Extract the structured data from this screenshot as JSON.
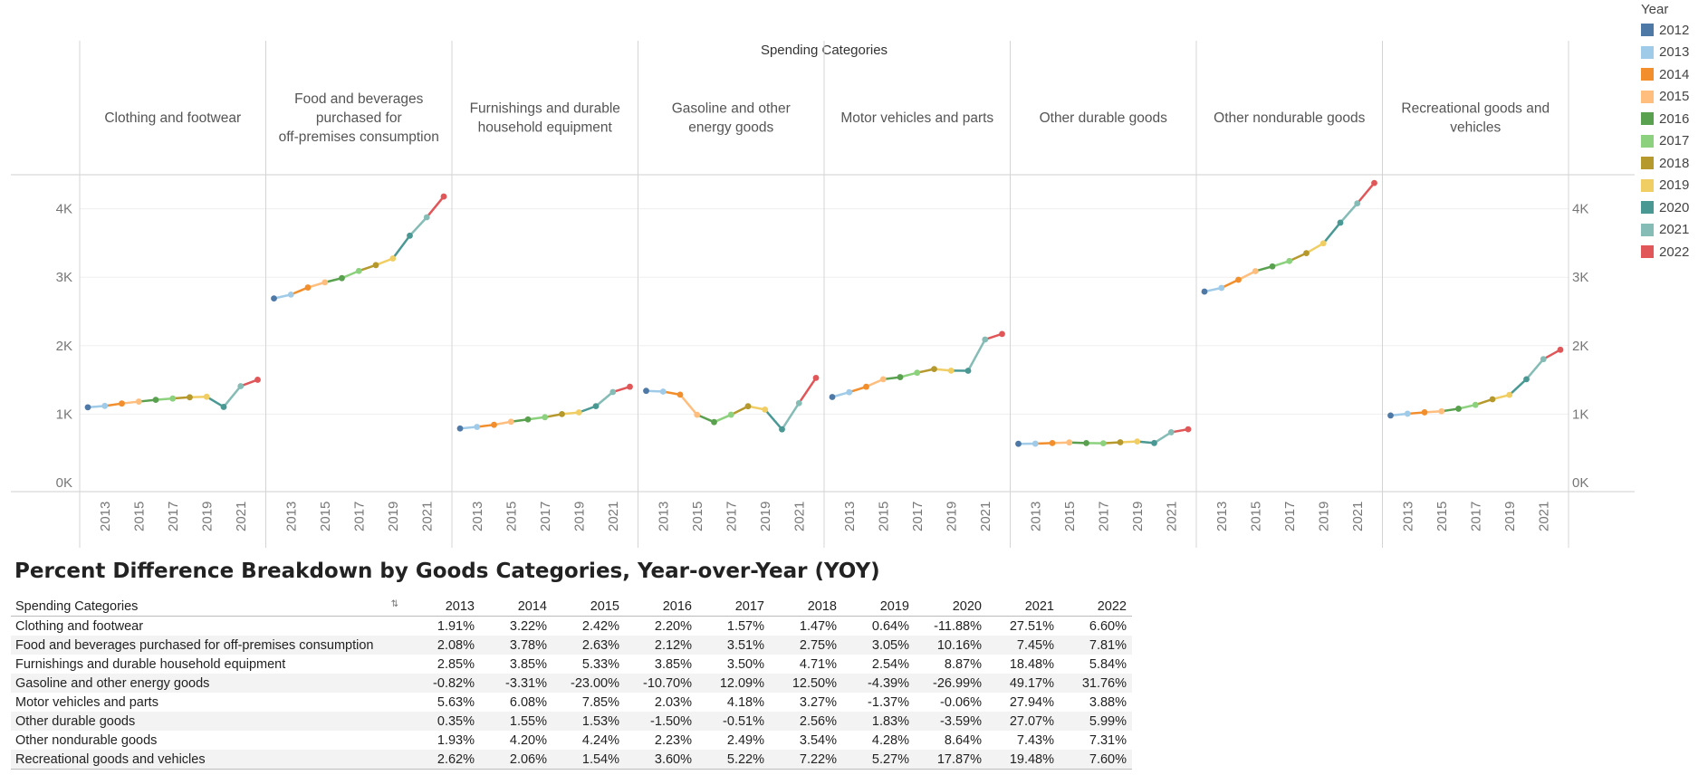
{
  "chart_data": {
    "type": "line",
    "title": "Spending Categories",
    "x": [
      2012,
      2013,
      2014,
      2015,
      2016,
      2017,
      2018,
      2019,
      2020,
      2021,
      2022
    ],
    "x_tick_labels": [
      "2013",
      "2015",
      "2017",
      "2019",
      "2021"
    ],
    "ylim": [
      0,
      4700
    ],
    "y_tick_labels": [
      "0K",
      "1K",
      "2K",
      "3K",
      "4K"
    ],
    "legend_title": "Year",
    "legend_placement": "right",
    "legend": [
      {
        "label": "2012",
        "color": "#4e79a7"
      },
      {
        "label": "2013",
        "color": "#a0cbe8"
      },
      {
        "label": "2014",
        "color": "#f28e2b"
      },
      {
        "label": "2015",
        "color": "#ffbe7d"
      },
      {
        "label": "2016",
        "color": "#59a14f"
      },
      {
        "label": "2017",
        "color": "#8cd17d"
      },
      {
        "label": "2018",
        "color": "#b6992d"
      },
      {
        "label": "2019",
        "color": "#f1ce63"
      },
      {
        "label": "2020",
        "color": "#499894"
      },
      {
        "label": "2021",
        "color": "#86bcb6"
      },
      {
        "label": "2022",
        "color": "#e15759"
      }
    ],
    "panels": [
      {
        "name": "Clothing and footwear",
        "values": [
          1100,
          1120,
          1155,
          1183,
          1209,
          1228,
          1246,
          1254,
          1105,
          1409,
          1502
        ]
      },
      {
        "name": "Food and beverages purchased for off-premises consumption",
        "values": [
          2690,
          2746,
          2850,
          2925,
          2987,
          3092,
          3177,
          3274,
          3607,
          3876,
          4179
        ]
      },
      {
        "name": "Furnishings and durable household equipment",
        "values": [
          790,
          813,
          844,
          889,
          923,
          955,
          1000,
          1025,
          1116,
          1323,
          1400
        ]
      },
      {
        "name": "Gasoline and other energy goods",
        "values": [
          1340,
          1329,
          1285,
          990,
          884,
          991,
          1115,
          1066,
          778,
          1161,
          1529
        ]
      },
      {
        "name": "Motor vehicles and parts",
        "values": [
          1250,
          1320,
          1400,
          1510,
          1540,
          1605,
          1658,
          1635,
          1634,
          2090,
          2171
        ]
      },
      {
        "name": "Other durable goods",
        "values": [
          566,
          568,
          577,
          586,
          577,
          574,
          589,
          600,
          578,
          735,
          779
        ]
      },
      {
        "name": "Other nondurable goods",
        "values": [
          2790,
          2844,
          2963,
          3089,
          3158,
          3237,
          3352,
          3495,
          3797,
          4079,
          4377
        ]
      },
      {
        "name": "Recreational goods and vehicles",
        "values": [
          980,
          1006,
          1026,
          1042,
          1079,
          1135,
          1217,
          1281,
          1510,
          1803,
          1940
        ]
      }
    ]
  },
  "table": {
    "title": "Percent Difference Breakdown by Goods Categories, Year-over-Year (YOY)",
    "category_header": "Spending Categories",
    "sort_icon": "sort-icon",
    "years": [
      "2013",
      "2014",
      "2015",
      "2016",
      "2017",
      "2018",
      "2019",
      "2020",
      "2021",
      "2022"
    ],
    "rows": [
      {
        "category": "Clothing and footwear",
        "values": [
          "1.91%",
          "3.22%",
          "2.42%",
          "2.20%",
          "1.57%",
          "1.47%",
          "0.64%",
          "-11.88%",
          "27.51%",
          "6.60%"
        ]
      },
      {
        "category": "Food and beverages purchased for off-premises consumption",
        "values": [
          "2.08%",
          "3.78%",
          "2.63%",
          "2.12%",
          "3.51%",
          "2.75%",
          "3.05%",
          "10.16%",
          "7.45%",
          "7.81%"
        ]
      },
      {
        "category": "Furnishings and durable household equipment",
        "values": [
          "2.85%",
          "3.85%",
          "5.33%",
          "3.85%",
          "3.50%",
          "4.71%",
          "2.54%",
          "8.87%",
          "18.48%",
          "5.84%"
        ]
      },
      {
        "category": "Gasoline and other energy goods",
        "values": [
          "-0.82%",
          "-3.31%",
          "-23.00%",
          "-10.70%",
          "12.09%",
          "12.50%",
          "-4.39%",
          "-26.99%",
          "49.17%",
          "31.76%"
        ]
      },
      {
        "category": "Motor vehicles and parts",
        "values": [
          "5.63%",
          "6.08%",
          "7.85%",
          "2.03%",
          "4.18%",
          "3.27%",
          "-1.37%",
          "-0.06%",
          "27.94%",
          "3.88%"
        ]
      },
      {
        "category": "Other durable goods",
        "values": [
          "0.35%",
          "1.55%",
          "1.53%",
          "-1.50%",
          "-0.51%",
          "2.56%",
          "1.83%",
          "-3.59%",
          "27.07%",
          "5.99%"
        ]
      },
      {
        "category": "Other nondurable goods",
        "values": [
          "1.93%",
          "4.20%",
          "4.24%",
          "2.23%",
          "2.49%",
          "3.54%",
          "4.28%",
          "8.64%",
          "7.43%",
          "7.31%"
        ]
      },
      {
        "category": "Recreational goods and vehicles",
        "values": [
          "2.62%",
          "2.06%",
          "1.54%",
          "3.60%",
          "5.22%",
          "7.22%",
          "5.27%",
          "17.87%",
          "19.48%",
          "7.60%"
        ]
      }
    ]
  }
}
